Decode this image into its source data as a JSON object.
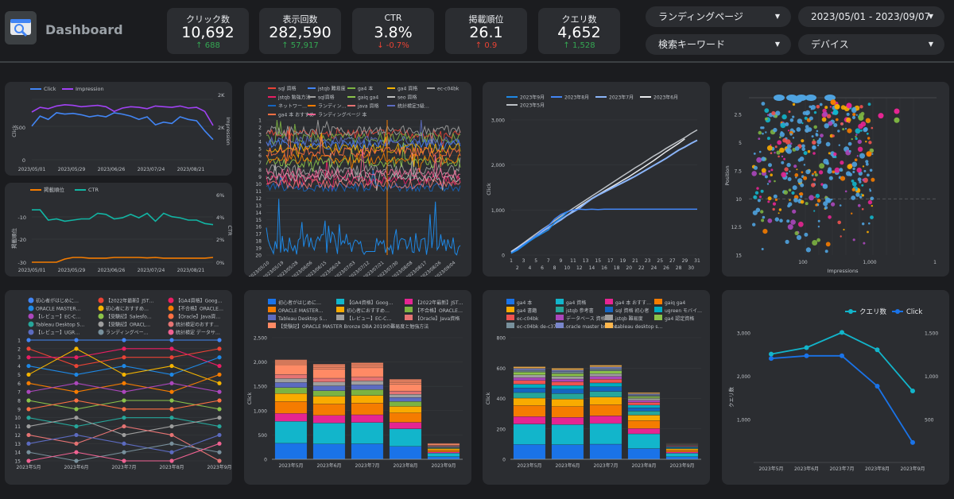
{
  "header": {
    "title": "Dashboard",
    "kpis": [
      {
        "label": "クリック数",
        "value": "10,692",
        "delta": "↑ 688",
        "dir": "up"
      },
      {
        "label": "表示回数",
        "value": "282,590",
        "delta": "↑ 57,917",
        "dir": "up"
      },
      {
        "label": "CTR",
        "value": "3.8%",
        "delta": "↓ -0.7%",
        "dir": "down"
      },
      {
        "label": "掲載順位",
        "value": "26.1",
        "delta": "↑ 0.9",
        "dir": "down"
      },
      {
        "label": "クエリ数",
        "value": "4,652",
        "delta": "↑ 1,528",
        "dir": "up"
      }
    ],
    "filters": {
      "landing": "ランディングページ",
      "date": "2023/05/01 - 2023/09/07",
      "keyword": "検索キーワード",
      "device": "デバイス"
    }
  },
  "colors": {
    "click": "#4285f4",
    "impression": "#a142f4",
    "position": "#f57c00",
    "ctr": "#12b5a4",
    "queries": "#12b5cb"
  },
  "chart_data": [
    {
      "id": "c1",
      "type": "line",
      "legend_position": "top-left",
      "series": [
        {
          "name": "Click",
          "values": [
            500,
            650,
            600,
            700,
            680,
            690,
            670,
            640,
            660,
            640,
            700,
            680,
            650,
            600,
            640,
            520,
            560,
            540,
            640,
            600,
            580,
            430,
            300
          ]
        },
        {
          "name": "Impression",
          "values": [
            710,
            780,
            760,
            800,
            820,
            810,
            790,
            800,
            810,
            790,
            720,
            770,
            790,
            780,
            760,
            800,
            790,
            780,
            800,
            770,
            780,
            720,
            510
          ]
        }
      ],
      "x_ticks": [
        "2023/05/01",
        "2023/05/29",
        "2023/06/26",
        "2023/07/24",
        "2023/08/21"
      ],
      "ylabel": "Click",
      "y2label": "Impression",
      "y_ticks": [
        "0",
        "500"
      ],
      "y2_ticks": [
        "2K",
        "2K"
      ]
    },
    {
      "id": "c2",
      "type": "line",
      "legend_position": "top-left",
      "series": [
        {
          "name": "掲載順位",
          "values": [
            -30,
            -30,
            -30,
            -30,
            -28.6,
            -27.9,
            -27.9,
            -28.2,
            -28.2,
            -28.2,
            -27.9,
            -27.9,
            -27.9,
            -27.9,
            -28.1,
            -27.9,
            -28.2,
            -28.2,
            -28.2,
            -28.2,
            -28.2,
            -28.2,
            -27.9
          ]
        },
        {
          "name": "CTR",
          "values": [
            4.6,
            4.6,
            3.7,
            3.8,
            3.6,
            3.7,
            3.8,
            3.8,
            4.3,
            4.2,
            3.8,
            3.9,
            4.2,
            3.9,
            4.3,
            3.6,
            4.3,
            4.0,
            3.9,
            3.7,
            3.7,
            3.4,
            3.3
          ]
        }
      ],
      "x_ticks": [
        "2023/05/01",
        "2023/05/29",
        "2023/06/26",
        "2023/07/24",
        "2023/08/21"
      ],
      "ylabel": "掲載順位",
      "y2label": "CTR",
      "y_ticks": [
        "-10",
        "-20",
        "-30"
      ],
      "y2_ticks": [
        "6%",
        "4%",
        "2%",
        "0%"
      ]
    },
    {
      "id": "c3",
      "type": "line",
      "legend_position": "top",
      "legend": [
        "sql 資格",
        "jstqb 難易度",
        "ga4 本",
        "ga4 資格",
        "ec-c04bk",
        "jstqb 勉強方法",
        "sql資格",
        "gaiq ga4",
        "seo 資格",
        "ネットワー…",
        "ランディン…",
        "java 資格",
        "統計検定3級…",
        "ga4 本 おすすめ",
        "ランディングページ 本"
      ],
      "legend_colors": [
        "#ea4335",
        "#4285f4",
        "#7cb342",
        "#f4b400",
        "#9e9e9e",
        "#e91e63",
        "#9e9e9e",
        "#8bc34a",
        "#bdbdbd",
        "#1565c0",
        "#f57c00",
        "#e57373",
        "#5c6bc0",
        "#ff7043",
        "#f06292"
      ],
      "y_ticks": [
        "1",
        "2",
        "3",
        "4",
        "5",
        "6",
        "7",
        "8",
        "9",
        "10",
        "11",
        "12",
        "13",
        "14",
        "15",
        "16",
        "17",
        "18",
        "19",
        "20"
      ],
      "x_ticks": [
        "2023/05/10",
        "2023/05/19",
        "2023/05/28",
        "2023/06/06",
        "2023/06/15",
        "2023/06/24",
        "2023/07/03",
        "2023/07/12",
        "2023/07/21",
        "2023/07/30",
        "2023/08/08",
        "2023/08/17",
        "2023/08/26",
        "2023/09/04"
      ]
    },
    {
      "id": "c4",
      "type": "line",
      "legend_position": "top",
      "series": [
        {
          "name": "2023年9月",
          "values": [
            40,
            110,
            210,
            310,
            400,
            480,
            560,
            720,
            820,
            950
          ]
        },
        {
          "name": "2023年8月",
          "values": [
            40,
            130,
            230,
            330,
            430,
            550,
            650,
            800,
            900,
            960,
            1000,
            1020,
            1010,
            1020,
            1010,
            1020,
            1020,
            1020,
            1020,
            1020,
            1020,
            1020,
            1020,
            1020,
            1020,
            1020,
            1020,
            1020,
            1020,
            1020,
            1020
          ]
        },
        {
          "name": "2023年7月",
          "values": [
            60,
            140,
            240,
            330,
            420,
            520,
            610,
            700,
            780,
            880,
            960,
            1040,
            1150,
            1250,
            1330,
            1400,
            1470,
            1540,
            1610,
            1680,
            1750,
            1830,
            1910,
            1990,
            2070,
            2150,
            2240,
            2330,
            2400,
            2480,
            2550
          ]
        },
        {
          "name": "2023年6月",
          "values": [
            70,
            160,
            250,
            340,
            430,
            520,
            600,
            690,
            780,
            880,
            980,
            1080,
            1170,
            1260,
            1340,
            1420,
            1500,
            1580,
            1660,
            1740,
            1830,
            1920,
            2010,
            2100,
            2200,
            2300,
            2390,
            2480,
            2580
          ]
        },
        {
          "name": "2023年5月",
          "values": [
            80,
            170,
            270,
            370,
            470,
            570,
            660,
            760,
            860,
            950,
            1040,
            1130,
            1220,
            1310,
            1400,
            1490,
            1580,
            1670,
            1760,
            1850,
            1940,
            2020,
            2110,
            2200,
            2280,
            2370,
            2450,
            2530,
            2610,
            2700,
            2780
          ]
        }
      ],
      "series_colors": [
        "#1e88e5",
        "#4285f4",
        "#8ab4f8",
        "#e8eaed",
        "#bdc1c6"
      ],
      "x_ticks_top": [
        "1",
        "3",
        "5",
        "7",
        "9",
        "11",
        "13",
        "15",
        "17",
        "19",
        "21",
        "23",
        "25",
        "27",
        "29",
        "31"
      ],
      "x_ticks_bottom": [
        "2",
        "4",
        "6",
        "8",
        "10",
        "12",
        "14",
        "16",
        "18",
        "20",
        "22",
        "24",
        "26",
        "28",
        "30"
      ],
      "y_ticks": [
        "3,000",
        "2,000",
        "1,000",
        "0"
      ],
      "ylabel": "Click",
      "ylim": [
        0,
        3000
      ]
    },
    {
      "id": "c5",
      "type": "scatter",
      "xlabel": "Impressions",
      "ylabel": "Position",
      "x_ticks": [
        "100",
        "1,000"
      ],
      "y_ticks": [
        "2.5",
        "5",
        "7.5",
        "10",
        "12.5",
        "15"
      ],
      "x_log": true
    },
    {
      "id": "c6",
      "type": "line",
      "legend_position": "top",
      "legend": [
        "初心者がはじめに…",
        "【2022年最新】JST…",
        "【GA4資格】Goog…",
        "ORACLE MASTER…",
        "初心者におすすめ…",
        "【不合格】ORACLE…",
        "【レビュー】EC-C…",
        "【受験記】Salesfo…",
        "【Oracle】Java資…",
        "Tableau Desktop S…",
        "【受験記】ORACL…",
        "統計検定のおすす…",
        "【レビュー】UGR…",
        "ランディングペー…",
        "統計検定 データサ…"
      ],
      "legend_colors": [
        "#4285f4",
        "#ea4335",
        "#e91e63",
        "#1e88e5",
        "#f4b400",
        "#f57c00",
        "#ab47bc",
        "#8bc34a",
        "#ff7043",
        "#26a69a",
        "#9e9e9e",
        "#e57373",
        "#5c6bc0",
        "#78909c",
        "#f06292"
      ],
      "y_ticks": [
        "1",
        "2",
        "3",
        "4",
        "5",
        "6",
        "7",
        "8",
        "9",
        "10",
        "11",
        "12",
        "13",
        "14",
        "15"
      ],
      "x_ticks": [
        "2023年5月",
        "2023年6月",
        "2023年7月",
        "2023年8月",
        "2023年9月"
      ]
    },
    {
      "id": "c7",
      "type": "bar",
      "stacked": true,
      "legend_position": "top",
      "legend": [
        "初心者がはじめに…",
        "【GA4資格】Goog…",
        "【2022年最新】JST…",
        "ORACLE MASTER…",
        "初心者におすすめ…",
        "【不合格】ORACLE…",
        "Tableau Desktop S…",
        "【レビュー】EC-C…",
        "【Oracle】Java資格",
        "【受験記】ORACLE MASTER Bronze DBA 2019の難易度と勉強方法"
      ],
      "legend_colors": [
        "#1a73e8",
        "#12b5cb",
        "#e52592",
        "#f57c00",
        "#f9ab00",
        "#7cb342",
        "#5c6bc0",
        "#9e9e9e",
        "#e57373",
        "#ff8a65"
      ],
      "categories": [
        "2023年5月",
        "2023年6月",
        "2023年7月",
        "2023年8月",
        "2023年9月"
      ],
      "totals": [
        2050,
        1960,
        1990,
        1650,
        330
      ],
      "y_ticks": [
        "2,500",
        "2,000",
        "1,500",
        "1,000",
        "500",
        "0"
      ],
      "ylabel": "Click",
      "ylim": [
        0,
        2500
      ]
    },
    {
      "id": "c8",
      "type": "bar",
      "stacked": true,
      "legend_position": "top",
      "legend": [
        "ga4 本",
        "ga4 資格",
        "ga4 本 おすす…",
        "gaiq ga4",
        "ga4 書籍",
        "jstqb 参考書",
        "sql 資格 初心者",
        "ugreen モバイ…",
        "ec-c04bk",
        "データベース 資格 初…",
        "jstqb 難易度",
        "ga4 認定資格",
        "ec-c04bk de-c37-5…",
        "oracle master bronze…",
        "tableau desktop s…"
      ],
      "legend_colors": [
        "#1a73e8",
        "#12b5cb",
        "#e52592",
        "#f57c00",
        "#f9ab00",
        "#26a69a",
        "#1565c0",
        "#00acc1",
        "#ef5350",
        "#ab47bc",
        "#9e9e9e",
        "#8bc34a",
        "#78909c",
        "#7986cb",
        "#ffb74d"
      ],
      "categories": [
        "2023年5月",
        "2023年6月",
        "2023年7月",
        "2023年8月",
        "2023年9月"
      ],
      "totals": [
        610,
        600,
        620,
        440,
        105
      ],
      "y_ticks": [
        "800",
        "600",
        "400",
        "200",
        "0"
      ],
      "ylabel": "Click",
      "ylim": [
        0,
        800
      ]
    },
    {
      "id": "c9",
      "type": "line",
      "legend_position": "top",
      "series": [
        {
          "name": "クエリ数",
          "values": [
            2500,
            2650,
            3000,
            2600,
            1650
          ]
        },
        {
          "name": "Click",
          "values": [
            1200,
            1230,
            1230,
            880,
            230
          ]
        }
      ],
      "categories": [
        "2023年5月",
        "2023年6月",
        "2023年7月",
        "2023年8月",
        "2023年9月"
      ],
      "ylabel": "クエリ数",
      "y_ticks": [
        "3,000",
        "2,000",
        "1,000"
      ],
      "y2_ticks": [
        "1,500",
        "1,000",
        "500"
      ],
      "ylim": [
        0,
        3300
      ],
      "y2lim": [
        0,
        1650
      ]
    }
  ]
}
